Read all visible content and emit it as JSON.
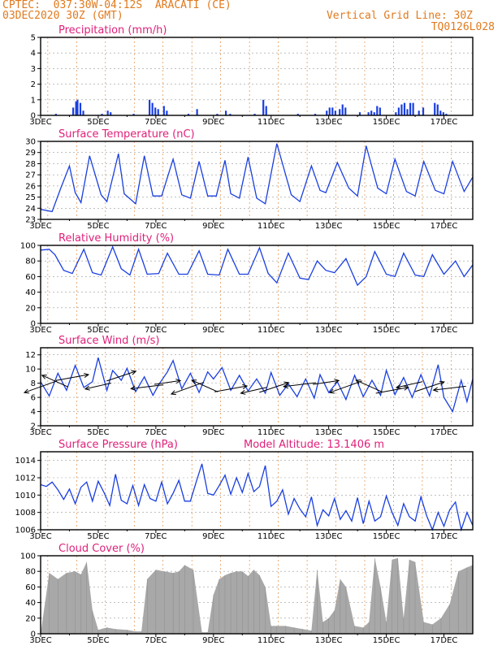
{
  "header": {
    "line1": "CPTEC:  037:30W-04:12S  ARACATI (CE)",
    "line2": "03DEC2020 30Z (GMT)",
    "right1": "Vertical Grid Line: 30Z",
    "right2": "TQ0126L028"
  },
  "colors": {
    "line": "#1a3fe0",
    "bar": "#1a3fe0",
    "cloud": "#a8a8a8",
    "title": "#e0207a",
    "header": "#e07a1e",
    "vgrid": "#e07a1e",
    "hgrid": "#9a9a9a"
  },
  "chart_data": [
    {
      "id": "precip",
      "type": "bar",
      "title": "Precipitation (mm/h)",
      "x_tick_labels": [
        "3DEC",
        "5DEC",
        "7DEC",
        "9DEC",
        "11DEC",
        "13DEC",
        "15DEC",
        "17DEC"
      ],
      "x_range_days": [
        3.0,
        18.0
      ],
      "ylim": [
        0,
        5
      ],
      "yticks": [
        0,
        1,
        2,
        3,
        4,
        5
      ],
      "bars": [
        [
          3.5,
          0.1
        ],
        [
          4.1,
          0.5
        ],
        [
          4.2,
          0.9
        ],
        [
          4.25,
          1.0
        ],
        [
          4.35,
          0.8
        ],
        [
          4.45,
          0.3
        ],
        [
          5.1,
          0.1
        ],
        [
          5.3,
          0.3
        ],
        [
          5.4,
          0.2
        ],
        [
          6.2,
          0.1
        ],
        [
          6.75,
          1.0
        ],
        [
          6.85,
          0.8
        ],
        [
          6.95,
          0.5
        ],
        [
          7.05,
          0.4
        ],
        [
          7.25,
          0.6
        ],
        [
          7.35,
          0.3
        ],
        [
          8.1,
          0.1
        ],
        [
          8.4,
          0.4
        ],
        [
          9.1,
          0.1
        ],
        [
          9.4,
          0.3
        ],
        [
          9.55,
          0.1
        ],
        [
          10.4,
          0.1
        ],
        [
          10.7,
          1.0
        ],
        [
          10.8,
          0.6
        ],
        [
          11.9,
          0.1
        ],
        [
          12.5,
          0.1
        ],
        [
          12.9,
          0.3
        ],
        [
          13.0,
          0.5
        ],
        [
          13.1,
          0.5
        ],
        [
          13.2,
          0.3
        ],
        [
          13.35,
          0.4
        ],
        [
          13.45,
          0.7
        ],
        [
          13.55,
          0.5
        ],
        [
          14.05,
          0.2
        ],
        [
          14.35,
          0.2
        ],
        [
          14.45,
          0.3
        ],
        [
          14.55,
          0.2
        ],
        [
          14.65,
          0.6
        ],
        [
          14.75,
          0.5
        ],
        [
          15.3,
          0.2
        ],
        [
          15.4,
          0.5
        ],
        [
          15.5,
          0.7
        ],
        [
          15.6,
          0.8
        ],
        [
          15.7,
          0.4
        ],
        [
          15.8,
          0.8
        ],
        [
          15.9,
          0.8
        ],
        [
          16.1,
          0.3
        ],
        [
          16.25,
          0.5
        ],
        [
          16.65,
          0.8
        ],
        [
          16.75,
          0.7
        ],
        [
          16.85,
          0.3
        ],
        [
          16.95,
          0.2
        ],
        [
          17.05,
          0.1
        ]
      ]
    },
    {
      "id": "temp",
      "type": "line",
      "title": "Surface Temperature (nC)",
      "x_tick_labels": [
        "3DEC",
        "5DEC",
        "7DEC",
        "9DEC",
        "11DEC",
        "13DEC",
        "15DEC",
        "17DEC"
      ],
      "x_range_days": [
        3.0,
        18.0
      ],
      "ylim": [
        23,
        30
      ],
      "yticks": [
        23,
        24,
        25,
        26,
        27,
        28,
        29,
        30
      ],
      "series": {
        "x": [
          3.0,
          3.4,
          3.7,
          4.0,
          4.2,
          4.4,
          4.7,
          5.1,
          5.3,
          5.7,
          5.9,
          6.3,
          6.6,
          6.9,
          7.2,
          7.6,
          7.9,
          8.2,
          8.5,
          8.8,
          9.1,
          9.4,
          9.6,
          9.9,
          10.2,
          10.5,
          10.8,
          11.2,
          11.7,
          12.0,
          12.4,
          12.7,
          12.9,
          13.3,
          13.7,
          14.0,
          14.3,
          14.7,
          15.0,
          15.3,
          15.7,
          16.0,
          16.3,
          16.7,
          17.0,
          17.3,
          17.7,
          18.0
        ],
        "y": [
          23.9,
          23.7,
          25.8,
          27.8,
          25.4,
          24.5,
          28.7,
          25.2,
          24.6,
          28.9,
          25.3,
          24.4,
          28.7,
          25.1,
          25.1,
          28.4,
          25.2,
          24.9,
          28.2,
          25.1,
          25.1,
          28.3,
          25.3,
          24.9,
          28.6,
          24.9,
          24.4,
          29.8,
          25.2,
          24.6,
          27.8,
          25.6,
          25.4,
          28.1,
          25.8,
          25.1,
          29.6,
          25.8,
          25.3,
          28.4,
          25.5,
          25.1,
          28.2,
          25.6,
          25.3,
          28.2,
          25.5,
          26.8
        ]
      }
    },
    {
      "id": "rh",
      "type": "line",
      "title": "Relative Humidity (%)",
      "x_tick_labels": [
        "3DEC",
        "5DEC",
        "7DEC",
        "9DEC",
        "11DEC",
        "13DEC",
        "15DEC",
        "17DEC"
      ],
      "x_range_days": [
        3.0,
        18.0
      ],
      "ylim": [
        0,
        100
      ],
      "yticks": [
        0,
        20,
        40,
        60,
        80,
        100
      ],
      "series": {
        "x": [
          3.0,
          3.3,
          3.5,
          3.8,
          4.1,
          4.5,
          4.8,
          5.1,
          5.5,
          5.8,
          6.1,
          6.4,
          6.7,
          7.1,
          7.4,
          7.8,
          8.1,
          8.5,
          8.8,
          9.2,
          9.5,
          9.9,
          10.2,
          10.6,
          10.9,
          11.2,
          11.6,
          12.0,
          12.3,
          12.6,
          12.9,
          13.2,
          13.6,
          14.0,
          14.3,
          14.6,
          15.0,
          15.3,
          15.6,
          16.0,
          16.3,
          16.6,
          17.0,
          17.4,
          17.7,
          18.0
        ],
        "y": [
          94,
          95,
          88,
          68,
          64,
          95,
          65,
          62,
          98,
          70,
          62,
          95,
          63,
          64,
          90,
          63,
          63,
          93,
          63,
          62,
          95,
          63,
          63,
          97,
          64,
          52,
          90,
          58,
          56,
          80,
          68,
          65,
          83,
          49,
          60,
          92,
          63,
          60,
          90,
          62,
          60,
          88,
          63,
          80,
          60,
          75
        ]
      }
    },
    {
      "id": "wind",
      "type": "line",
      "title": "Surface Wind (m/s)",
      "x_tick_labels": [
        "3DEC",
        "5DEC",
        "7DEC",
        "9DEC",
        "11DEC",
        "13DEC",
        "15DEC",
        "17DEC"
      ],
      "x_range_days": [
        3.0,
        18.0
      ],
      "ylim": [
        2,
        13
      ],
      "yticks": [
        2,
        4,
        6,
        8,
        10,
        12
      ],
      "series": {
        "x": [
          3.0,
          3.3,
          3.6,
          3.9,
          4.2,
          4.5,
          4.8,
          5.0,
          5.3,
          5.5,
          5.8,
          6.0,
          6.3,
          6.6,
          6.9,
          7.1,
          7.4,
          7.6,
          7.9,
          8.2,
          8.5,
          8.8,
          9.0,
          9.3,
          9.6,
          9.9,
          10.2,
          10.5,
          10.8,
          11.0,
          11.3,
          11.6,
          11.9,
          12.2,
          12.5,
          12.7,
          13.0,
          13.3,
          13.6,
          13.9,
          14.2,
          14.5,
          14.8,
          15.0,
          15.3,
          15.6,
          15.9,
          16.2,
          16.5,
          16.8,
          17.0,
          17.3,
          17.6,
          17.8,
          18.0
        ],
        "y": [
          8.2,
          6.2,
          9.4,
          7.0,
          10.5,
          7.4,
          8.2,
          11.6,
          7.0,
          9.8,
          8.4,
          10.1,
          6.8,
          8.9,
          6.3,
          7.8,
          9.6,
          11.2,
          7.2,
          9.4,
          6.7,
          9.6,
          8.6,
          10.2,
          7.0,
          9.1,
          6.9,
          8.6,
          6.6,
          9.5,
          6.3,
          7.9,
          6.1,
          8.6,
          5.9,
          9.2,
          6.7,
          8.2,
          5.7,
          9.1,
          6.1,
          8.4,
          6.3,
          9.8,
          6.4,
          8.8,
          6.0,
          9.2,
          6.2,
          10.6,
          6.0,
          4.0,
          8.4,
          5.4,
          8.6
        ]
      },
      "arrows": [
        [
          3.0,
          7.5
        ],
        [
          3.5,
          8.3
        ],
        [
          4.1,
          8.8
        ],
        [
          5.0,
          7.6
        ],
        [
          5.8,
          9.0
        ],
        [
          6.7,
          7.5
        ],
        [
          7.4,
          8.1
        ],
        [
          8.1,
          7.3
        ],
        [
          8.7,
          7.6
        ],
        [
          9.6,
          7.2
        ],
        [
          10.4,
          7.0
        ],
        [
          11.1,
          7.4
        ],
        [
          12.0,
          7.8
        ],
        [
          12.9,
          8.1
        ],
        [
          13.6,
          7.5
        ],
        [
          14.4,
          7.6
        ],
        [
          15.2,
          7.0
        ],
        [
          15.8,
          7.8
        ],
        [
          16.5,
          7.5
        ],
        [
          17.2,
          7.3
        ]
      ]
    },
    {
      "id": "pressure",
      "type": "line",
      "title": "Surface Pressure (hPa)",
      "annotation": "Model Altitude: 13.1406 m",
      "x_tick_labels": [
        "3DEC",
        "5DEC",
        "7DEC",
        "9DEC",
        "11DEC",
        "13DEC",
        "15DEC",
        "17DEC"
      ],
      "x_range_days": [
        3.0,
        18.0
      ],
      "ylim": [
        1006,
        1015
      ],
      "yticks": [
        1006,
        1008,
        1010,
        1012,
        1014
      ],
      "series": {
        "x": [
          3.0,
          3.2,
          3.4,
          3.6,
          3.8,
          4.0,
          4.2,
          4.4,
          4.6,
          4.8,
          5.0,
          5.2,
          5.4,
          5.6,
          5.8,
          6.0,
          6.2,
          6.4,
          6.6,
          6.8,
          7.0,
          7.2,
          7.4,
          7.6,
          7.8,
          8.0,
          8.2,
          8.4,
          8.6,
          8.8,
          9.0,
          9.2,
          9.4,
          9.6,
          9.8,
          10.0,
          10.2,
          10.4,
          10.6,
          10.8,
          11.0,
          11.2,
          11.4,
          11.6,
          11.8,
          12.0,
          12.2,
          12.4,
          12.6,
          12.8,
          13.0,
          13.2,
          13.4,
          13.6,
          13.8,
          14.0,
          14.2,
          14.4,
          14.6,
          14.8,
          15.0,
          15.2,
          15.4,
          15.6,
          15.8,
          16.0,
          16.2,
          16.4,
          16.6,
          16.8,
          17.0,
          17.2,
          17.4,
          17.6,
          17.8,
          18.0
        ],
        "y": [
          1011.2,
          1011.0,
          1011.5,
          1010.6,
          1009.5,
          1010.7,
          1009.0,
          1010.9,
          1011.5,
          1009.3,
          1011.6,
          1010.3,
          1008.8,
          1012.4,
          1009.4,
          1009.0,
          1011.1,
          1008.8,
          1011.2,
          1009.6,
          1009.3,
          1011.5,
          1009.0,
          1010.2,
          1011.7,
          1009.3,
          1009.3,
          1011.5,
          1013.6,
          1010.2,
          1010.0,
          1011.1,
          1012.3,
          1010.1,
          1012.0,
          1010.3,
          1012.5,
          1010.4,
          1011.0,
          1013.4,
          1008.7,
          1009.3,
          1010.6,
          1007.8,
          1009.6,
          1008.4,
          1007.5,
          1009.8,
          1006.5,
          1008.3,
          1007.6,
          1009.6,
          1007.2,
          1008.2,
          1007.0,
          1009.7,
          1006.7,
          1009.3,
          1007.0,
          1007.5,
          1009.9,
          1008.0,
          1006.5,
          1009.0,
          1007.5,
          1007.0,
          1009.8,
          1007.6,
          1006.0,
          1008.0,
          1006.4,
          1008.3,
          1009.2,
          1006.0,
          1008.0,
          1006.5
        ]
      }
    },
    {
      "id": "cloud",
      "type": "bar",
      "title": "Cloud Cover (%)",
      "x_tick_labels": [
        "3DEC",
        "5DEC",
        "7DEC",
        "9DEC",
        "11DEC",
        "13DEC",
        "15DEC",
        "17DEC"
      ],
      "x_range_days": [
        3.0,
        18.0
      ],
      "ylim": [
        0,
        100
      ],
      "yticks": [
        0,
        20,
        40,
        60,
        80,
        100
      ],
      "series": {
        "x": [
          3.0,
          3.3,
          3.6,
          3.9,
          4.2,
          4.4,
          4.6,
          4.8,
          5.0,
          5.3,
          5.6,
          6.0,
          6.3,
          6.5,
          6.7,
          7.0,
          7.3,
          7.6,
          7.8,
          8.0,
          8.3,
          8.6,
          8.8,
          9.0,
          9.2,
          9.4,
          9.6,
          9.8,
          10.0,
          10.2,
          10.4,
          10.6,
          10.8,
          11.0,
          11.2,
          11.5,
          11.8,
          12.1,
          12.4,
          12.6,
          12.8,
          13.0,
          13.2,
          13.4,
          13.6,
          13.9,
          14.2,
          14.4,
          14.6,
          14.8,
          15.0,
          15.2,
          15.4,
          15.6,
          15.8,
          16.0,
          16.3,
          16.6,
          16.9,
          17.2,
          17.5,
          17.8,
          18.0
        ],
        "y": [
          0,
          78,
          70,
          78,
          80,
          76,
          92,
          30,
          5,
          8,
          6,
          5,
          3,
          3,
          70,
          82,
          80,
          78,
          80,
          88,
          82,
          2,
          2,
          50,
          70,
          75,
          78,
          80,
          80,
          74,
          82,
          75,
          60,
          10,
          10,
          10,
          8,
          6,
          4,
          82,
          15,
          20,
          30,
          70,
          60,
          10,
          8,
          15,
          97,
          60,
          15,
          95,
          97,
          20,
          95,
          92,
          15,
          12,
          20,
          38,
          80,
          85,
          88
        ]
      }
    }
  ]
}
